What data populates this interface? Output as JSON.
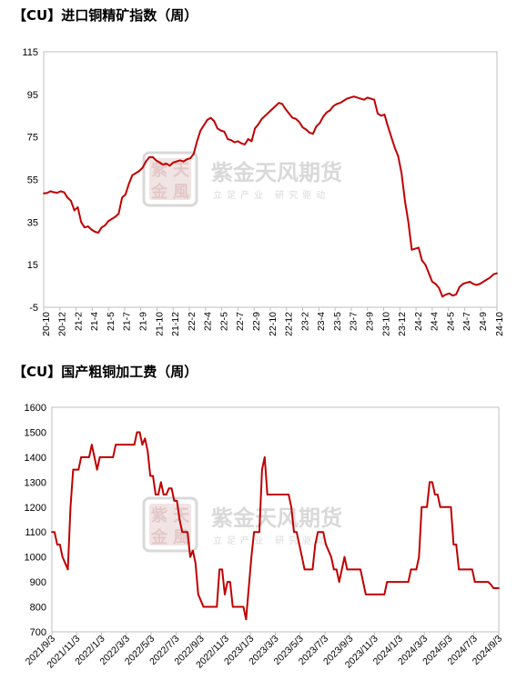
{
  "watermark": {
    "name": "紫金天风期货",
    "slogan": "立足产业 研究驱动",
    "logo_glyphs": "紫天金風"
  },
  "colors": {
    "series": "#c00000",
    "axis": "#bfbfbf",
    "watermark": "#d9d9d9"
  },
  "chart_data": [
    {
      "type": "line",
      "title": "【CU】进口铜精矿指数（周）",
      "xlabel": "",
      "ylabel": "",
      "ylim": [
        -5,
        115
      ],
      "yticks": [
        -5,
        15,
        35,
        55,
        75,
        95,
        115
      ],
      "grid": false,
      "xtick_labels": [
        "20-10",
        "20-12",
        "21-2",
        "21-4",
        "21-5",
        "21-7",
        "21-9",
        "21-10",
        "21-12",
        "22-2",
        "22-4",
        "22-5",
        "22-7",
        "22-9",
        "22-10",
        "22-12",
        "23-2",
        "23-4",
        "23-5",
        "23-7",
        "23-9",
        "23-10",
        "23-12",
        "24-2",
        "24-4",
        "24-5",
        "24-7",
        "24-9",
        "24-10"
      ],
      "series": [
        {
          "values": [
            48.5,
            48.7,
            49.5,
            49,
            48.8,
            49.5,
            49,
            46.5,
            45,
            40.5,
            42,
            35,
            32.5,
            33,
            31.5,
            30.5,
            30,
            32.5,
            33.5,
            35.5,
            36.5,
            37.5,
            39,
            46.5,
            48,
            53,
            57,
            58,
            59,
            60.5,
            63.5,
            65.5,
            65.5,
            64,
            63,
            62,
            62.5,
            61.5,
            63,
            63.5,
            64,
            63.5,
            64.5,
            65,
            67,
            73,
            78,
            80.5,
            83,
            84,
            82.5,
            79,
            78,
            77.5,
            74,
            73.5,
            72.5,
            73,
            72,
            71.5,
            74,
            73,
            79,
            81,
            83.5,
            85,
            86.5,
            88,
            89.5,
            91,
            90.5,
            88,
            86,
            84,
            83.5,
            82,
            79.5,
            78.5,
            77,
            76.5,
            80,
            81.5,
            84.5,
            86.5,
            87.5,
            89.5,
            90.5,
            91,
            92,
            93,
            93.5,
            94,
            93.5,
            93,
            92.5,
            93.5,
            93,
            92.5,
            86,
            85,
            85.5,
            80,
            75,
            70,
            66,
            58,
            45,
            35,
            22,
            22.5,
            23,
            17,
            15,
            11,
            7,
            6,
            4,
            0,
            1,
            1.5,
            0.5,
            1,
            4.5,
            6,
            6.5,
            7,
            6,
            5.5,
            6,
            7,
            8,
            9,
            10.5,
            11
          ]
        }
      ]
    },
    {
      "type": "line",
      "title": "【CU】国产粗铜加工费（周）",
      "xlabel": "",
      "ylabel": "",
      "ylim": [
        700,
        1600
      ],
      "yticks": [
        700,
        800,
        900,
        1000,
        1100,
        1200,
        1300,
        1400,
        1500,
        1600
      ],
      "grid": false,
      "xtick_labels": [
        "2021/9/3",
        "2021/11/3",
        "2022/1/3",
        "2022/3/3",
        "2022/5/3",
        "2022/7/3",
        "2022/9/3",
        "2022/11/3",
        "2023/1/3",
        "2023/3/3",
        "2023/5/3",
        "2023/7/3",
        "2023/9/3",
        "2023/11/3",
        "2024/1/3",
        "2024/3/3",
        "2024/5/3",
        "2024/7/3",
        "2024/9/3"
      ],
      "series": [
        {
          "values": [
            1100,
            1100,
            1050,
            1050,
            1000,
            975,
            950,
            1200,
            1350,
            1350,
            1350,
            1400,
            1400,
            1400,
            1400,
            1450,
            1400,
            1350,
            1400,
            1400,
            1400,
            1400,
            1400,
            1400,
            1450,
            1450,
            1450,
            1450,
            1450,
            1450,
            1450,
            1450,
            1500,
            1500,
            1450,
            1475,
            1425,
            1325,
            1325,
            1250,
            1250,
            1300,
            1250,
            1250,
            1275,
            1275,
            1225,
            1225,
            1150,
            1100,
            1100,
            1100,
            1000,
            1025,
            975,
            850,
            825,
            800,
            800,
            800,
            800,
            800,
            800,
            950,
            950,
            850,
            900,
            900,
            800,
            800,
            800,
            800,
            800,
            750,
            875,
            1000,
            1100,
            1100,
            1100,
            1350,
            1400,
            1250,
            1250,
            1250,
            1250,
            1250,
            1250,
            1250,
            1250,
            1250,
            1200,
            1100,
            1100,
            1050,
            1000,
            950,
            950,
            950,
            950,
            1050,
            1100,
            1100,
            1100,
            1050,
            1025,
            1000,
            950,
            950,
            900,
            950,
            1000,
            950,
            950,
            950,
            950,
            950,
            950,
            900,
            850,
            850,
            850,
            850,
            850,
            850,
            850,
            850,
            900,
            900,
            900,
            900,
            900,
            900,
            900,
            900,
            900,
            950,
            950,
            950,
            1000,
            1200,
            1200,
            1200,
            1300,
            1300,
            1250,
            1250,
            1200,
            1200,
            1200,
            1200,
            1200,
            1050,
            1050,
            950,
            950,
            950,
            950,
            950,
            950,
            900,
            900,
            900,
            900,
            900,
            900,
            890,
            875,
            875,
            875
          ]
        }
      ]
    }
  ]
}
